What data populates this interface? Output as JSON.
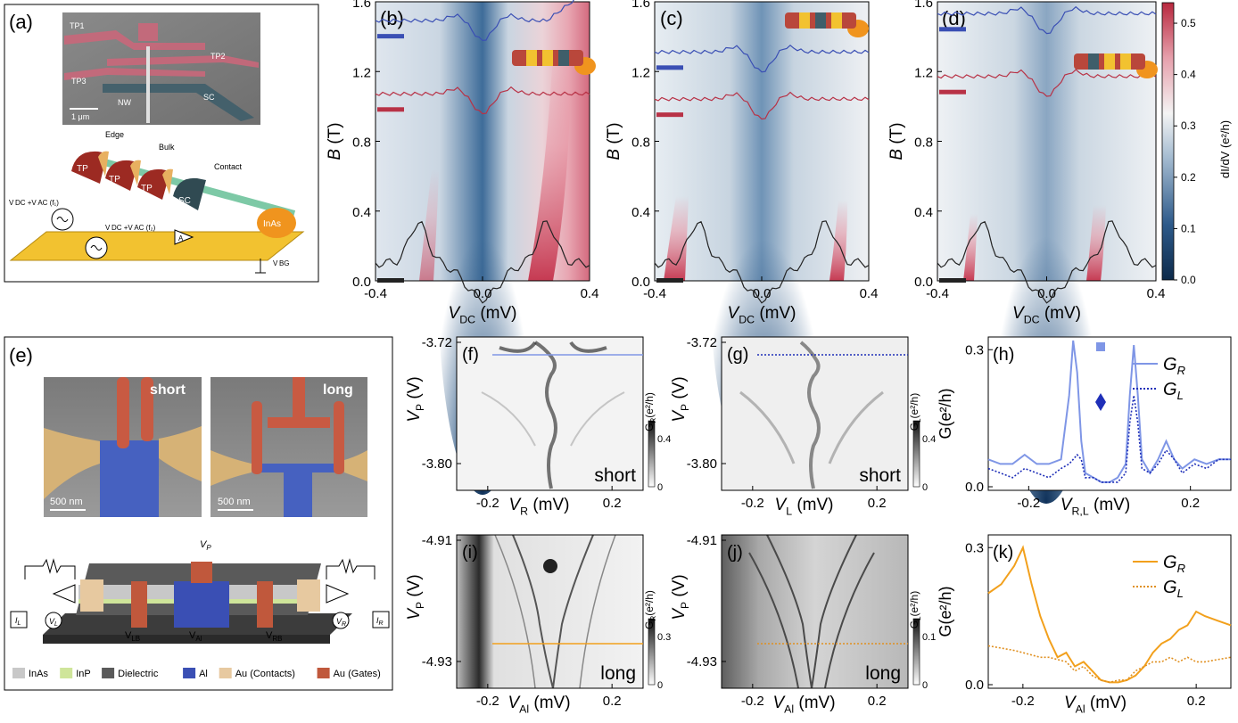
{
  "panel_labels": {
    "a": "(a)",
    "b": "(b)",
    "c": "(c)",
    "d": "(d)",
    "e": "(e)",
    "f": "(f)",
    "g": "(g)",
    "h": "(h)",
    "i": "(i)",
    "j": "(j)",
    "k": "(k)"
  },
  "panel_a": {
    "sem_labels": {
      "tp1": "TP1",
      "tp2": "TP2",
      "tp3": "TP3",
      "nw": "NW",
      "sc": "SC",
      "scale": "1 μm"
    },
    "schematic": {
      "edge": "Edge",
      "bulk": "Bulk",
      "contact": "Contact",
      "tp": "TP",
      "sc": "SC",
      "inas": "InAs",
      "source1": "V DC +V AC (f₁)",
      "source2": "V DC +V AC (f₂)",
      "meter": "A",
      "gate": "V BG"
    }
  },
  "panel_e": {
    "short_label": "short",
    "long_label": "long",
    "scale_short": "500 nm",
    "scale_long": "500 nm",
    "gates": {
      "vp": "V",
      "vp_sub": "P",
      "vlb": "V",
      "vlb_sub": "LB",
      "val": "V",
      "val_sub": "Al",
      "vrb": "V",
      "vrb_sub": "RB",
      "vl": "V",
      "vl_sub": "L",
      "vr": "V",
      "vr_sub": "R",
      "il": "I",
      "il_sub": "L",
      "ir": "I",
      "ir_sub": "R"
    },
    "legend": [
      {
        "label": "InAs",
        "color": "#c8c8c8"
      },
      {
        "label": "InP",
        "color": "#cfe59a"
      },
      {
        "label": "Dielectric",
        "color": "#5a5a5a"
      },
      {
        "label": "Al",
        "color": "#3a4fb4"
      },
      {
        "label": "Au (Contacts)",
        "color": "#e7c9a0"
      },
      {
        "label": "Au (Gates)",
        "color": "#c0583c"
      }
    ]
  },
  "colorbar_bcd": {
    "label": "dI/dV (e²/h)",
    "ticks": [
      "0.0",
      "0.1",
      "0.2",
      "0.3",
      "0.4",
      "0.5"
    ]
  },
  "chart_data": [
    {
      "id": "b",
      "type": "heatmap",
      "title": "",
      "xlabel": "V",
      "xlabel_sub": "DC",
      "xunit": "(mV)",
      "ylabel": "B",
      "yunit": "(T)",
      "xlim": [
        -0.4,
        0.4
      ],
      "ylim": [
        0,
        1.6
      ],
      "xticks": [
        "-0.4",
        "0.0",
        "0.4"
      ],
      "yticks": [
        "0.0",
        "0.4",
        "0.8",
        "1.2",
        "1.6"
      ],
      "linecuts": [
        {
          "name": "",
          "color": "#3a4fb4",
          "B": 1.4
        },
        {
          "name": "",
          "color": "#b83246",
          "B": 0.98
        },
        {
          "name": "",
          "color": "#222222",
          "B": 0.0
        }
      ]
    },
    {
      "id": "c",
      "type": "heatmap",
      "title": "",
      "xlabel": "V",
      "xlabel_sub": "DC",
      "xunit": "(mV)",
      "ylabel": "B",
      "yunit": "(T)",
      "xlim": [
        -0.4,
        0.4
      ],
      "ylim": [
        0,
        1.6
      ],
      "xticks": [
        "-0.4",
        "0.0",
        "0.4"
      ],
      "yticks": [
        "0.0",
        "0.4",
        "0.8",
        "1.2",
        "1.6"
      ],
      "linecuts": [
        {
          "name": "",
          "color": "#3a4fb4",
          "B": 1.22
        },
        {
          "name": "",
          "color": "#b83246",
          "B": 0.95
        },
        {
          "name": "",
          "color": "#222222",
          "B": 0.0
        }
      ]
    },
    {
      "id": "d",
      "type": "heatmap",
      "title": "",
      "xlabel": "V",
      "xlabel_sub": "DC",
      "xunit": "(mV)",
      "ylabel": "B",
      "yunit": "(T)",
      "xlim": [
        -0.4,
        0.4
      ],
      "ylim": [
        0,
        1.6
      ],
      "xticks": [
        "-0.4",
        "0.0",
        "0.4"
      ],
      "yticks": [
        "0.0",
        "0.4",
        "0.8",
        "1.2",
        "1.6"
      ],
      "linecuts": [
        {
          "name": "",
          "color": "#3a4fb4",
          "B": 1.44
        },
        {
          "name": "",
          "color": "#b83246",
          "B": 1.08
        },
        {
          "name": "",
          "color": "#222222",
          "B": 0.0
        }
      ]
    },
    {
      "id": "f",
      "type": "heatmap",
      "xlabel": "V",
      "xlabel_sub": "R",
      "xunit": "(mV)",
      "ylabel": "V",
      "ylabel_sub": "P",
      "yunit": "(V)",
      "xticks": [
        "-0.2",
        "0.2"
      ],
      "yticks": [
        "-3.72",
        "-3.80"
      ],
      "inset": "short",
      "cbar_label": "G",
      "cbar_sub": "R",
      "cbar_unit": "(e²/h)",
      "cbar_ticks": [
        "0",
        "0.4"
      ],
      "cut_style": "solid",
      "cut_color": "#7f96e6"
    },
    {
      "id": "g",
      "type": "heatmap",
      "xlabel": "V",
      "xlabel_sub": "L",
      "xunit": "(mV)",
      "ylabel": "V",
      "ylabel_sub": "P",
      "yunit": "(V)",
      "xticks": [
        "-0.2",
        "0.2"
      ],
      "yticks": [
        "-3.72",
        "-3.80"
      ],
      "inset": "short",
      "cbar_label": "G",
      "cbar_sub": "L",
      "cbar_unit": "(e²/h)",
      "cbar_ticks": [
        "0",
        "0.4"
      ],
      "cut_style": "dotted",
      "cut_color": "#1f2fb8"
    },
    {
      "id": "h",
      "type": "line",
      "xlabel": "V",
      "xlabel_sub": "R,L",
      "xunit": "(mV)",
      "ylabel": "G(e²/h)",
      "xlim": [
        -0.3,
        0.3
      ],
      "ylim": [
        0,
        0.32
      ],
      "xticks": [
        "-0.2",
        "0.2"
      ],
      "yticks": [
        "0.0",
        "0.3"
      ],
      "x": [
        -0.3,
        -0.27,
        -0.24,
        -0.21,
        -0.18,
        -0.15,
        -0.12,
        -0.1,
        -0.09,
        -0.08,
        -0.07,
        -0.06,
        -0.04,
        -0.02,
        0,
        0.02,
        0.04,
        0.05,
        0.06,
        0.07,
        0.08,
        0.1,
        0.12,
        0.14,
        0.16,
        0.18,
        0.21,
        0.24,
        0.27,
        0.3
      ],
      "series": [
        {
          "name": "G",
          "name_sub": "R",
          "color": "#7f96e6",
          "style": "solid",
          "values": [
            0.06,
            0.05,
            0.05,
            0.07,
            0.05,
            0.05,
            0.06,
            0.2,
            0.32,
            0.25,
            0.1,
            0.03,
            0.02,
            0.01,
            0.01,
            0.02,
            0.05,
            0.2,
            0.31,
            0.2,
            0.06,
            0.03,
            0.06,
            0.1,
            0.06,
            0.04,
            0.06,
            0.05,
            0.06,
            0.06
          ]
        },
        {
          "name": "G",
          "name_sub": "L",
          "color": "#1f2fb8",
          "style": "dotted",
          "values": [
            0.04,
            0.03,
            0.02,
            0.04,
            0.03,
            0.02,
            0.04,
            0.05,
            0.06,
            0.07,
            0.06,
            0.02,
            0.02,
            0.01,
            0.01,
            0.01,
            0.03,
            0.14,
            0.2,
            0.14,
            0.04,
            0.03,
            0.05,
            0.08,
            0.06,
            0.03,
            0.05,
            0.04,
            0.06,
            0.06
          ]
        }
      ]
    },
    {
      "id": "i",
      "type": "heatmap",
      "xlabel": "V",
      "xlabel_sub": "Al",
      "xunit": "(mV)",
      "ylabel": "V",
      "ylabel_sub": "P",
      "yunit": "(V)",
      "xticks": [
        "-0.2",
        "0.2"
      ],
      "yticks": [
        "-4.91",
        "-4.93"
      ],
      "inset": "long",
      "cbar_label": "G",
      "cbar_sub": "R",
      "cbar_unit": "(e²/h)",
      "cbar_ticks": [
        "0",
        "0.3"
      ],
      "cut_style": "solid",
      "cut_color": "#f2a01c"
    },
    {
      "id": "j",
      "type": "heatmap",
      "xlabel": "V",
      "xlabel_sub": "Al",
      "xunit": "(mV)",
      "ylabel": "V",
      "ylabel_sub": "P",
      "yunit": "(V)",
      "xticks": [
        "-0.2",
        "0.2"
      ],
      "yticks": [
        "-4.91",
        "-4.93"
      ],
      "inset": "long",
      "cbar_label": "G",
      "cbar_sub": "L",
      "cbar_unit": "(e²/h)",
      "cbar_ticks": [
        "0",
        "0.1"
      ],
      "cut_style": "dotted",
      "cut_color": "#e09020"
    },
    {
      "id": "k",
      "type": "line",
      "xlabel": "V",
      "xlabel_sub": "Al",
      "xunit": "(mV)",
      "ylabel": "G(e²/h)",
      "xlim": [
        -0.28,
        0.28
      ],
      "ylim": [
        0,
        0.32
      ],
      "xticks": [
        "-0.2",
        "0.2"
      ],
      "yticks": [
        "0.0",
        "0.3"
      ],
      "x": [
        -0.28,
        -0.25,
        -0.22,
        -0.2,
        -0.18,
        -0.16,
        -0.14,
        -0.12,
        -0.1,
        -0.08,
        -0.06,
        -0.04,
        -0.02,
        0,
        0.02,
        0.04,
        0.06,
        0.08,
        0.1,
        0.12,
        0.14,
        0.16,
        0.18,
        0.2,
        0.22,
        0.25,
        0.28
      ],
      "series": [
        {
          "name": "G",
          "name_sub": "R",
          "color": "#f2a01c",
          "style": "solid",
          "values": [
            0.2,
            0.22,
            0.26,
            0.3,
            0.22,
            0.15,
            0.1,
            0.06,
            0.07,
            0.04,
            0.05,
            0.03,
            0.01,
            0.005,
            0.005,
            0.01,
            0.02,
            0.04,
            0.07,
            0.09,
            0.1,
            0.12,
            0.13,
            0.16,
            0.15,
            0.14,
            0.13
          ]
        },
        {
          "name": "G",
          "name_sub": "L",
          "color": "#e09020",
          "style": "dotted",
          "values": [
            0.085,
            0.08,
            0.075,
            0.07,
            0.065,
            0.06,
            0.06,
            0.055,
            0.05,
            0.03,
            0.04,
            0.02,
            0.01,
            0.005,
            0.01,
            0.01,
            0.03,
            0.04,
            0.05,
            0.05,
            0.06,
            0.05,
            0.06,
            0.05,
            0.05,
            0.055,
            0.06
          ]
        }
      ]
    }
  ]
}
